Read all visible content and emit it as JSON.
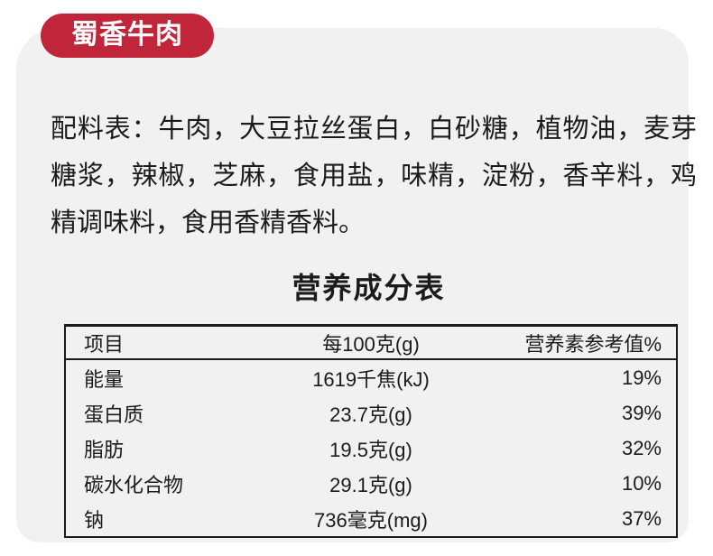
{
  "badge": {
    "label": "蜀香牛肉"
  },
  "ingredients": {
    "text": "配料表：牛肉，大豆拉丝蛋白，白砂糖，植物油，麦芽糖浆，辣椒，芝麻，食用盐，味精，淀粉，香辛料，鸡精调味料，食用香精香料。"
  },
  "nutrition": {
    "title": "营养成分表",
    "table": {
      "headers": [
        "项目",
        "每100克(g)",
        "营养素参考值%"
      ],
      "rows": [
        {
          "item": "能量",
          "per100g": "1619千焦(kJ)",
          "nrv": "19%"
        },
        {
          "item": "蛋白质",
          "per100g": "23.7克(g)",
          "nrv": "39%"
        },
        {
          "item": "脂肪",
          "per100g": "19.5克(g)",
          "nrv": "32%"
        },
        {
          "item": "碳水化合物",
          "per100g": "29.1克(g)",
          "nrv": "10%"
        },
        {
          "item": "钠",
          "per100g": "736毫克(mg)",
          "nrv": "37%"
        }
      ]
    }
  },
  "colors": {
    "badge_red": "#c0253a",
    "card_gray": "#f1f1f2",
    "text_dark": "#1b1b1b",
    "border_dark": "#1a1a1a"
  }
}
